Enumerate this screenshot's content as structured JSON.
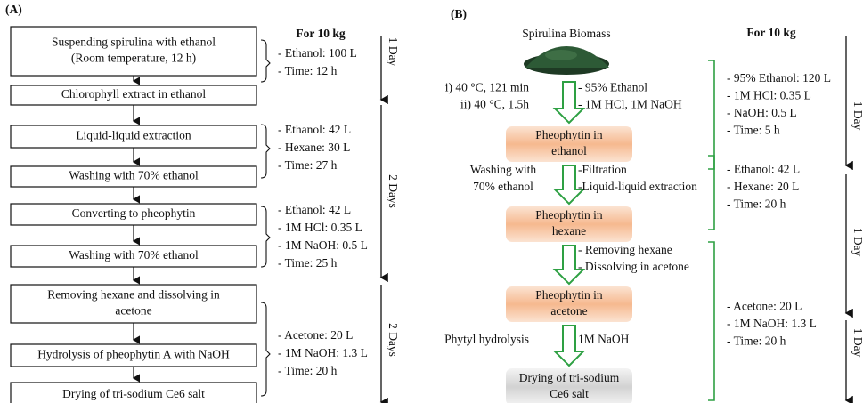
{
  "panel_a": {
    "label": "(A)",
    "header": "For 10 kg",
    "boxes": [
      [
        "Suspending spirulina with ethanol",
        "(Room temperature, 12 h)"
      ],
      [
        "Chlorophyll extract in ethanol"
      ],
      [
        "Liquid-liquid extraction"
      ],
      [
        "Washing with 70% ethanol"
      ],
      [
        "Converting to pheophytin"
      ],
      [
        "Washing with 70% ethanol"
      ],
      [
        "Removing hexane and dissolving in",
        "acetone"
      ],
      [
        "Hydrolysis of pheophytin A with NaOH"
      ],
      [
        "Drying of tri-sodium Ce6 salt"
      ]
    ],
    "params": [
      [
        "- Ethanol: 100 L",
        "- Time: 12 h"
      ],
      [
        "- Ethanol: 42 L",
        "- Hexane: 30 L",
        "- Time: 27 h"
      ],
      [
        "- Ethanol: 42 L",
        "- 1M HCl: 0.35 L",
        "- 1M NaOH: 0.5 L",
        "- Time: 25 h"
      ],
      [
        "- Acetone: 20 L",
        "- 1M NaOH: 1.3 L",
        "- Time: 20 h"
      ]
    ],
    "days": [
      "1 Day",
      "2 Days",
      "2 Days"
    ]
  },
  "panel_b": {
    "label": "(B)",
    "source": "Spirulina Biomass",
    "header": "For 10 kg",
    "boxes": [
      [
        "Pheophytin in",
        "ethanol"
      ],
      [
        "Pheophytin in",
        "hexane"
      ],
      [
        "Pheophytin in",
        "acetone"
      ],
      [
        "Drying of tri-sodium",
        "Ce6 salt"
      ]
    ],
    "steps": [
      {
        "left": [
          "i) 40 °C, 121 min",
          "ii) 40 °C, 1.5h"
        ],
        "right": [
          "- 95% Ethanol",
          "- 1M HCl, 1M NaOH"
        ]
      },
      {
        "left": [
          "Washing with",
          "70% ethanol"
        ],
        "right": [
          "-Filtration",
          "-Liquid-liquid extraction"
        ]
      },
      {
        "left": [],
        "right": [
          "- Removing hexane",
          "- Dissolving in acetone"
        ]
      },
      {
        "left": [
          "Phytyl hydrolysis"
        ],
        "right": [
          "1M NaOH"
        ]
      }
    ],
    "params": [
      [
        "- 95% Ethanol: 120 L",
        "- 1M HCl: 0.35 L",
        "- NaOH: 0.5 L",
        "- Time: 5 h"
      ],
      [
        "- Ethanol: 42 L",
        "- Hexane: 20 L",
        "- Time: 20 h"
      ],
      [
        "- Acetone: 20 L",
        "- 1M NaOH: 1.3 L",
        "- Time: 20 h"
      ]
    ],
    "days": [
      "1 Day",
      "1 Day",
      "1 Day"
    ]
  }
}
